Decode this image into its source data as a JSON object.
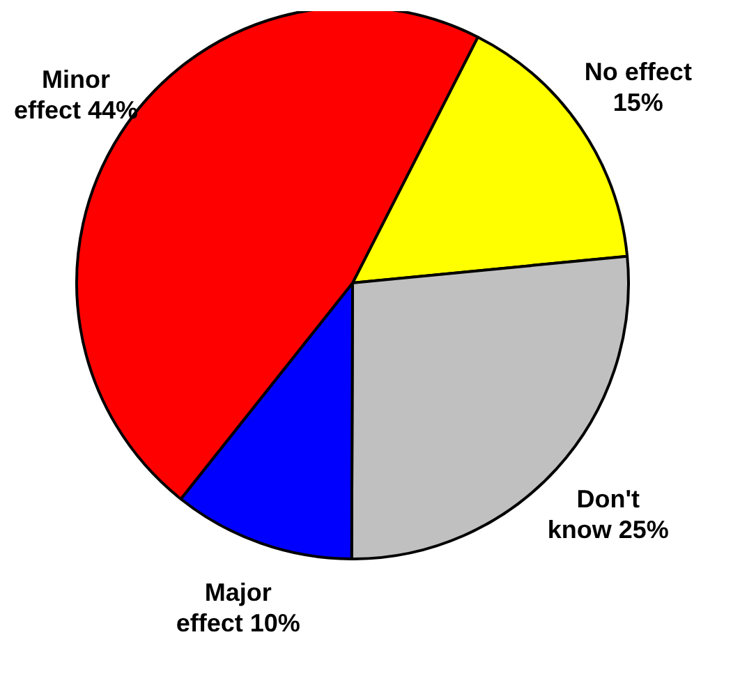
{
  "chart_data": {
    "type": "pie",
    "categories": [
      "No effect",
      "Don't know",
      "Major effect",
      "Minor effect"
    ],
    "values": [
      15,
      25,
      10,
      44
    ],
    "value_labels": [
      "15%",
      "25%",
      "10%",
      "44%"
    ],
    "colors": [
      "#ffff00",
      "#c0c0c0",
      "#0000ff",
      "#ff0000"
    ]
  }
}
